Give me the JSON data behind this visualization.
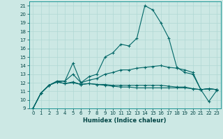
{
  "xlabel": "Humidex (Indice chaleur)",
  "background_color": "#cce8e4",
  "grid_color": "#b0d8d4",
  "line_color": "#006666",
  "x_values": [
    0,
    1,
    2,
    3,
    4,
    5,
    6,
    7,
    8,
    9,
    10,
    11,
    12,
    13,
    14,
    15,
    16,
    17,
    18,
    19,
    20,
    21,
    22,
    23
  ],
  "line1": [
    9,
    10.8,
    11.7,
    12.1,
    12.2,
    14.3,
    12.0,
    12.7,
    13.0,
    15.0,
    15.5,
    16.5,
    16.3,
    17.2,
    21.0,
    20.5,
    19.0,
    17.2,
    13.8,
    13.2,
    13.0,
    11.2,
    11.3,
    11.2
  ],
  "line2": [
    9,
    10.8,
    11.7,
    12.2,
    12.2,
    13.0,
    12.0,
    12.3,
    12.5,
    13.0,
    13.2,
    13.5,
    13.5,
    13.7,
    13.8,
    13.9,
    14.0,
    13.8,
    13.7,
    13.5,
    13.2,
    11.2,
    11.3,
    11.2
  ],
  "line3": [
    9,
    10.8,
    11.7,
    12.1,
    11.9,
    12.1,
    11.8,
    11.9,
    11.8,
    11.8,
    11.7,
    11.7,
    11.7,
    11.7,
    11.7,
    11.7,
    11.7,
    11.6,
    11.5,
    11.5,
    11.3,
    11.2,
    11.3,
    11.2
  ],
  "line4": [
    9,
    10.8,
    11.7,
    12.1,
    11.9,
    12.0,
    11.8,
    11.9,
    11.8,
    11.7,
    11.6,
    11.5,
    11.5,
    11.4,
    11.4,
    11.4,
    11.4,
    11.4,
    11.4,
    11.4,
    11.3,
    11.2,
    9.8,
    11.1
  ],
  "ylim": [
    9,
    21.5
  ],
  "yticks": [
    9,
    10,
    11,
    12,
    13,
    14,
    15,
    16,
    17,
    18,
    19,
    20,
    21
  ],
  "xticks": [
    0,
    1,
    2,
    3,
    4,
    5,
    6,
    7,
    8,
    9,
    10,
    11,
    12,
    13,
    14,
    15,
    16,
    17,
    18,
    19,
    20,
    21,
    22,
    23
  ]
}
